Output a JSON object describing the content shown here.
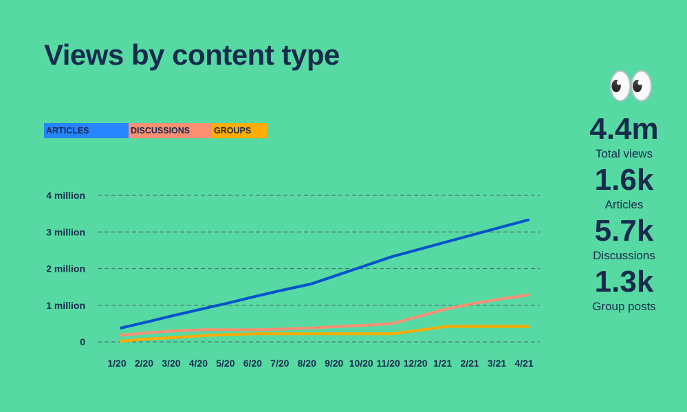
{
  "title": "Views by content type",
  "legend": [
    {
      "label": "ARTICLES",
      "color": "#2684ff"
    },
    {
      "label": "DISCUSSIONS",
      "color": "#ff8f73"
    },
    {
      "label": "GROUPS",
      "color": "#ffab00"
    }
  ],
  "stats": {
    "icon": "👀",
    "items": [
      {
        "value": "4.4m",
        "label": "Total views"
      },
      {
        "value": "1.6k",
        "label": "Articles"
      },
      {
        "value": "5.7k",
        "label": "Discussions"
      },
      {
        "value": "1.3k",
        "label": "Group posts"
      }
    ]
  },
  "chart_data": {
    "type": "line",
    "title": "Views by content type",
    "categories": [
      "1/20",
      "2/20",
      "3/20",
      "4/20",
      "5/20",
      "6/20",
      "7/20",
      "8/20",
      "9/20",
      "10/20",
      "11/20",
      "12/20",
      "1/21",
      "2/21",
      "3/21",
      "4/21"
    ],
    "yticks": [
      {
        "v": 0,
        "label": "0"
      },
      {
        "v": 1,
        "label": "1 million"
      },
      {
        "v": 2,
        "label": "2 million"
      },
      {
        "v": 3,
        "label": "3 million"
      },
      {
        "v": 4,
        "label": "4 million"
      }
    ],
    "ylim": [
      0,
      4
    ],
    "unit": "million views",
    "grid": true,
    "series": [
      {
        "name": "ARTICLES",
        "color": "#0052cc",
        "values": [
          0.38,
          0.55,
          0.73,
          0.9,
          1.07,
          1.25,
          1.42,
          1.58,
          1.83,
          2.08,
          2.33,
          2.53,
          2.73,
          2.93,
          3.13,
          3.33
        ]
      },
      {
        "name": "DISCUSSIONS",
        "color": "#ff8f73",
        "values": [
          0.18,
          0.25,
          0.3,
          0.33,
          0.33,
          0.33,
          0.35,
          0.38,
          0.42,
          0.45,
          0.5,
          0.7,
          0.9,
          1.05,
          1.17,
          1.28
        ]
      },
      {
        "name": "GROUPS",
        "color": "#ffab00",
        "values": [
          0.02,
          0.08,
          0.12,
          0.17,
          0.2,
          0.22,
          0.22,
          0.22,
          0.22,
          0.22,
          0.22,
          0.32,
          0.42,
          0.42,
          0.42,
          0.42
        ]
      }
    ]
  }
}
